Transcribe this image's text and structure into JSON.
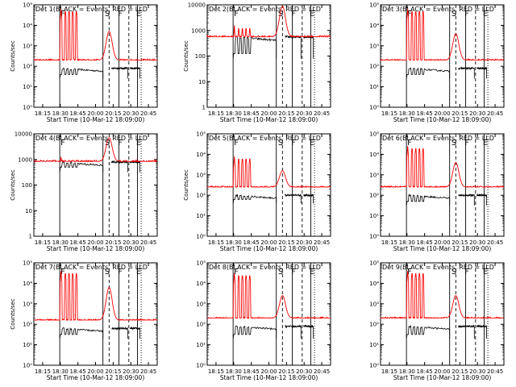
{
  "chart_data": [
    {
      "type": "line",
      "title": "Det 1(BLACK = Events, RED = LLD",
      "ylabel": "Counts/sec",
      "xlabel": "Start Time (10-Mar-12 18:09:00)",
      "x_ticks": [
        "18:15",
        "18:30",
        "18:45",
        "20:00",
        "20:15",
        "20:30",
        "20:45"
      ],
      "y_ticks": [
        "10⁰",
        "10¹",
        "10²",
        "10³",
        "10⁴",
        "10⁵"
      ],
      "ylim_exp": [
        0,
        5
      ],
      "markers": [
        "F",
        "S",
        "F",
        "E"
      ],
      "series": [
        {
          "name": "Events",
          "color": "#000000",
          "level_exp": 1.9,
          "drop_exp": 1.4
        },
        {
          "name": "LLD",
          "color": "#ff0000",
          "level_exp": 2.3,
          "spike_exp": 4.8,
          "hump_exp": 3.7
        }
      ]
    },
    {
      "type": "line",
      "title": "Det 2(BLACK = Events, RED = LLD",
      "ylabel": "Counts/sec",
      "xlabel": "Start Time (10-Mar-12 18:09:00)",
      "x_ticks": [
        "18:15",
        "18:30",
        "18:45",
        "20:00",
        "20:15",
        "20:30",
        "20:45"
      ],
      "y_ticks": [
        "1",
        "10",
        "100",
        "1000",
        "10000"
      ],
      "ylim_exp": [
        0,
        4
      ],
      "markers": [
        "F",
        "S",
        "F",
        "E"
      ],
      "series": [
        {
          "name": "Events",
          "color": "#000000",
          "level_exp": 2.75,
          "drop_exp": 1.9
        },
        {
          "name": "LLD",
          "color": "#ff0000",
          "level_exp": 2.75,
          "spike_exp": 3.2,
          "hump_exp": 3.95
        }
      ]
    },
    {
      "type": "line",
      "title": "Det 3(BLACK = Events, RED = LLD",
      "ylabel": "",
      "xlabel": "Start Time (10-Mar-12 18:09:00)",
      "x_ticks": [
        "18:15",
        "18:30",
        "18:45",
        "20:00",
        "20:15",
        "20:30",
        "20:45"
      ],
      "y_ticks": [
        "10⁰",
        "10¹",
        "10²",
        "10³",
        "10⁴",
        "10⁵"
      ],
      "ylim_exp": [
        0,
        5
      ],
      "markers": [
        "F",
        "S",
        "F",
        "E"
      ],
      "series": [
        {
          "name": "Events",
          "color": "#000000",
          "level_exp": 1.9,
          "drop_exp": 1.4
        },
        {
          "name": "LLD",
          "color": "#ff0000",
          "level_exp": 2.3,
          "spike_exp": 4.8,
          "hump_exp": 3.6
        }
      ]
    },
    {
      "type": "line",
      "title": "Det 4(BLACK = Events, RED = LLD",
      "ylabel": "Counts/sec",
      "xlabel": "Start Time (10-Mar-12 18:09:00)",
      "x_ticks": [
        "18:15",
        "18:30",
        "18:45",
        "20:00",
        "20:15",
        "20:30",
        "20:45"
      ],
      "y_ticks": [
        "1",
        "10",
        "100",
        "1000",
        "10000"
      ],
      "ylim_exp": [
        0,
        4
      ],
      "markers": [
        "F",
        "S",
        "F",
        "E"
      ],
      "series": [
        {
          "name": "Events",
          "color": "#000000",
          "level_exp": 2.9,
          "drop_exp": 2.5
        },
        {
          "name": "LLD",
          "color": "#ff0000",
          "level_exp": 2.92,
          "spike_exp": 3.1,
          "hump_exp": 3.85
        }
      ]
    },
    {
      "type": "line",
      "title": "Det 5(BLACK = Events, RED = LLD",
      "ylabel": "Counts/sec",
      "xlabel": "Start Time (10-Mar-12 18:09:00)",
      "x_ticks": [
        "18:15",
        "18:30",
        "18:45",
        "20:00",
        "20:15",
        "20:30",
        "20:45"
      ],
      "y_ticks": [
        "10⁰",
        "10¹",
        "10²",
        "10³",
        "10⁴",
        "10⁵"
      ],
      "ylim_exp": [
        0,
        5
      ],
      "markers": [
        "F",
        "S",
        "F",
        "E"
      ],
      "series": [
        {
          "name": "Events",
          "color": "#000000",
          "level_exp": 2.0,
          "drop_exp": 1.6
        },
        {
          "name": "LLD",
          "color": "#ff0000",
          "level_exp": 2.4,
          "spike_exp": 3.9,
          "hump_exp": 3.2
        }
      ]
    },
    {
      "type": "line",
      "title": "Det 6(BLACK = Events, RED = LLD",
      "ylabel": "",
      "xlabel": "Start Time (10-Mar-12 18:09:00)",
      "x_ticks": [
        "18:15",
        "18:30",
        "18:45",
        "20:00",
        "20:15",
        "20:30",
        "20:45"
      ],
      "y_ticks": [
        "10⁰",
        "10¹",
        "10²",
        "10³",
        "10⁴",
        "10⁵"
      ],
      "ylim_exp": [
        0,
        5
      ],
      "markers": [
        "F",
        "S",
        "F",
        "E"
      ],
      "series": [
        {
          "name": "Events",
          "color": "#000000",
          "level_exp": 2.0,
          "drop_exp": 1.5
        },
        {
          "name": "LLD",
          "color": "#ff0000",
          "level_exp": 2.4,
          "spike_exp": 4.4,
          "hump_exp": 3.6
        }
      ]
    },
    {
      "type": "line",
      "title": "Det 7(BLACK = Events, RED = LLD",
      "ylabel": "Counts/sec",
      "xlabel": "Start Time (10-Mar-12 18:09:00)",
      "x_ticks": [
        "18:15",
        "18:30",
        "18:45",
        "20:00",
        "20:15",
        "20:30",
        "20:45"
      ],
      "y_ticks": [
        "10⁰",
        "10¹",
        "10²",
        "10³",
        "10⁴",
        "10⁵"
      ],
      "ylim_exp": [
        0,
        5
      ],
      "markers": [
        "F",
        "S",
        "F",
        "E"
      ],
      "series": [
        {
          "name": "Events",
          "color": "#000000",
          "level_exp": 1.8,
          "drop_exp": 1.3
        },
        {
          "name": "LLD",
          "color": "#ff0000",
          "level_exp": 2.2,
          "spike_exp": 4.6,
          "hump_exp": 3.8
        }
      ]
    },
    {
      "type": "line",
      "title": "Det 8(BLACK = Events, RED = LLD",
      "ylabel": "",
      "xlabel": "Start Time (10-Mar-12 18:09:00)",
      "x_ticks": [
        "18:15",
        "18:30",
        "18:45",
        "20:00",
        "20:15",
        "20:30",
        "20:45"
      ],
      "y_ticks": [
        "10⁰",
        "10¹",
        "10²",
        "10³",
        "10⁴",
        "10⁵"
      ],
      "ylim_exp": [
        0,
        5
      ],
      "markers": [
        "F",
        "S",
        "F",
        "E"
      ],
      "series": [
        {
          "name": "Events",
          "color": "#000000",
          "level_exp": 1.9,
          "drop_exp": 1.3
        },
        {
          "name": "LLD",
          "color": "#ff0000",
          "level_exp": 2.3,
          "spike_exp": 4.5,
          "hump_exp": 3.4
        }
      ]
    },
    {
      "type": "line",
      "title": "Det 9(BLACK = Events, RED = LLD",
      "ylabel": "",
      "xlabel": "Start Time (10-Mar-12 18:09:00)",
      "x_ticks": [
        "18:15",
        "18:30",
        "18:45",
        "20:00",
        "20:15",
        "20:30",
        "20:45"
      ],
      "y_ticks": [
        "10⁰",
        "10¹",
        "10²",
        "10³",
        "10⁴",
        "10⁵"
      ],
      "ylim_exp": [
        0,
        5
      ],
      "markers": [
        "F",
        "S",
        "F",
        "E"
      ],
      "series": [
        {
          "name": "Events",
          "color": "#000000",
          "level_exp": 1.9,
          "drop_exp": 1.3
        },
        {
          "name": "LLD",
          "color": "#ff0000",
          "level_exp": 2.3,
          "spike_exp": 4.6,
          "hump_exp": 3.4
        }
      ]
    }
  ]
}
